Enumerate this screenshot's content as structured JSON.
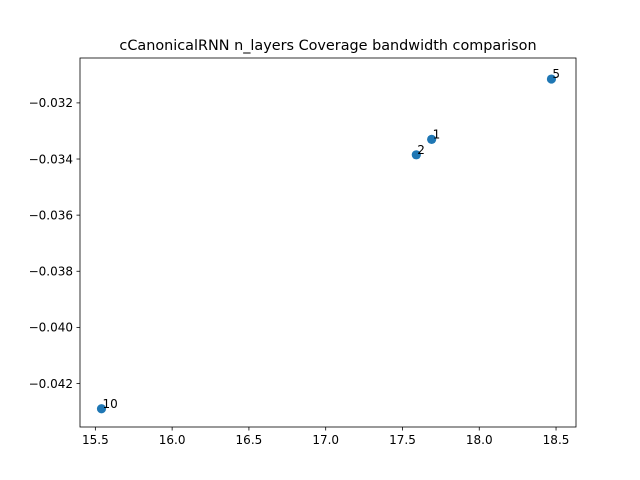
{
  "chart_data": {
    "type": "scatter",
    "title": "cCanonicalRNN n_layers Coverage bandwidth comparison",
    "xlabel": "",
    "ylabel": "",
    "xlim": [
      15.4,
      18.63
    ],
    "ylim": [
      -0.04355,
      -0.0304
    ],
    "x_ticks": [
      15.5,
      16.0,
      16.5,
      17.0,
      17.5,
      18.0,
      18.5
    ],
    "x_tick_labels": [
      "15.5",
      "16.0",
      "16.5",
      "17.0",
      "17.5",
      "18.0",
      "18.5"
    ],
    "y_ticks": [
      -0.032,
      -0.034,
      -0.036,
      -0.038,
      -0.04,
      -0.042
    ],
    "y_tick_labels": [
      "−0.032",
      "−0.034",
      "−0.036",
      "−0.038",
      "−0.040",
      "−0.042"
    ],
    "grid": false,
    "legend": "none",
    "marker_color": "#1f77b4",
    "points": [
      {
        "label": "1",
        "x": 17.69,
        "y": -0.0333
      },
      {
        "label": "2",
        "x": 17.59,
        "y": -0.03385
      },
      {
        "label": "5",
        "x": 18.47,
        "y": -0.03115
      },
      {
        "label": "10",
        "x": 15.54,
        "y": -0.0429
      }
    ]
  }
}
